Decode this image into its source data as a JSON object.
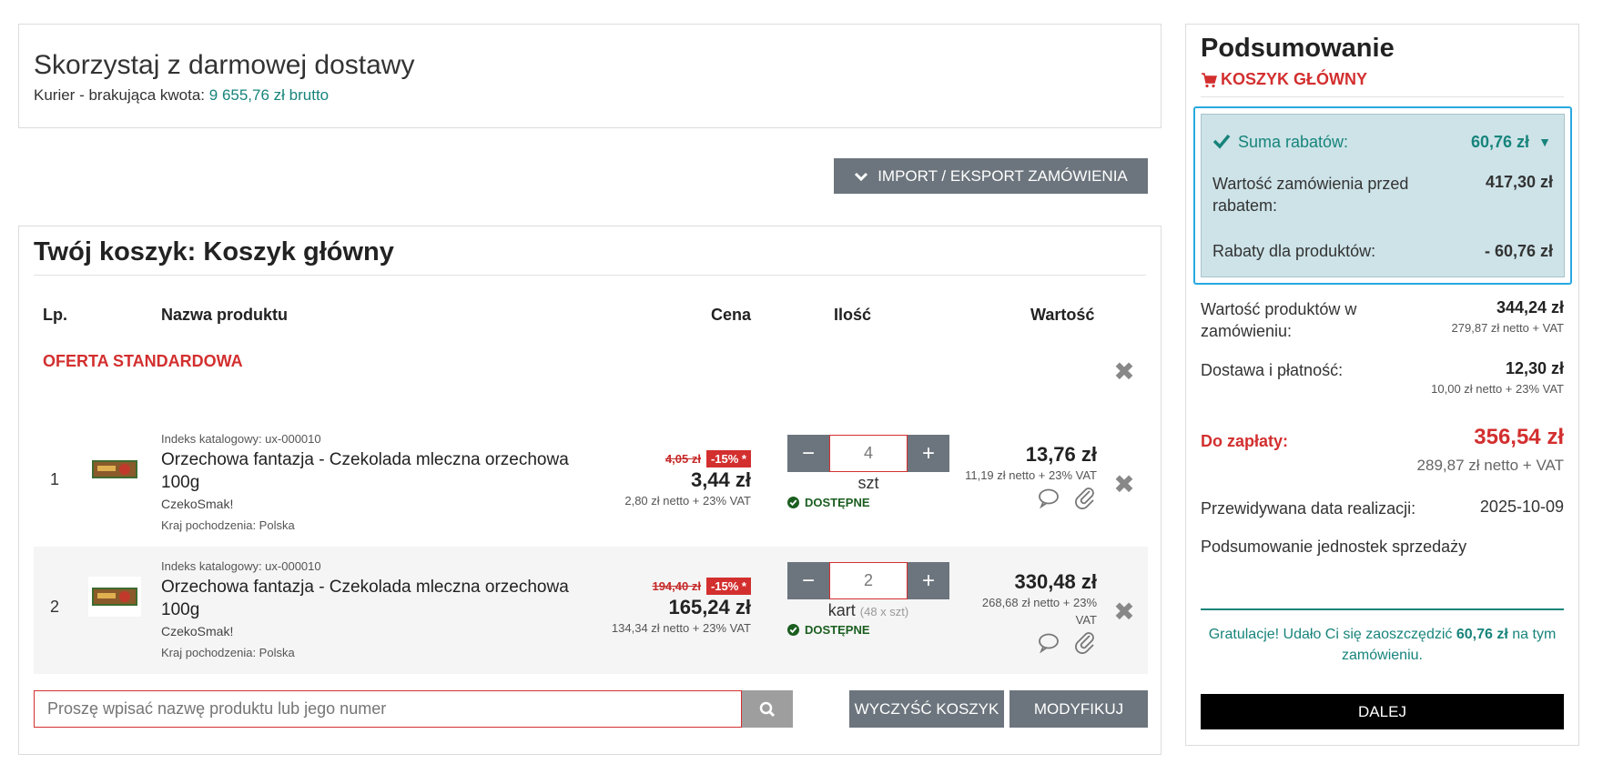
{
  "free_delivery": {
    "heading": "Skorzystaj z darmowej dostawy",
    "missing_label": "Kurier - brakująca kwota:",
    "missing_amount": "9 655,76 zł brutto"
  },
  "import_export_label": "IMPORT / EKSPORT ZAMÓWIENIA",
  "cart": {
    "title": "Twój koszyk: Koszyk główny",
    "columns": {
      "lp": "Lp.",
      "name": "Nazwa produktu",
      "price": "Cena",
      "qty": "Ilość",
      "value": "Wartość"
    },
    "offer_label": "OFERTA STANDARDOWA",
    "items": [
      {
        "lp": "1",
        "index": "Indeks katalogowy: ux-000010",
        "name": "Orzechowa fantazja - Czekolada mleczna orzechowa 100g",
        "brand": "CzekoSmak!",
        "origin": "Kraj pochodzenia: Polska",
        "old_price": "4,05 zł",
        "discount": "-15% *",
        "price": "3,44 zł",
        "price_netto": "2,80 zł netto + 23% VAT",
        "qty": "4",
        "unit": "szt",
        "pack": "",
        "availability": "DOSTĘPNE",
        "value": "13,76 zł",
        "value_netto": "11,19 zł netto + 23% VAT"
      },
      {
        "lp": "2",
        "index": "Indeks katalogowy: ux-000010",
        "name": "Orzechowa fantazja - Czekolada mleczna orzechowa 100g",
        "brand": "CzekoSmak!",
        "origin": "Kraj pochodzenia: Polska",
        "old_price": "194,40 zł",
        "discount": "-15% *",
        "price": "165,24 zł",
        "price_netto": "134,34 zł netto + 23% VAT",
        "qty": "2",
        "unit": "kart",
        "pack": "(48 x szt)",
        "availability": "DOSTĘPNE",
        "value": "330,48 zł",
        "value_netto": "268,68 zł netto + 23% VAT"
      }
    ],
    "search_placeholder": "Proszę wpisać nazwę produktu lub jego numer",
    "clear_label": "WYCZYŚĆ KOSZYK",
    "modify_label": "MODYFIKUJ"
  },
  "summary": {
    "title": "Podsumowanie",
    "cart_name": "KOSZYK GŁÓWNY",
    "discounts_label": "Suma rabatów:",
    "discounts_value": "60,76 zł",
    "before_label": "Wartość zamówienia przed rabatem:",
    "before_value": "417,30 zł",
    "product_disc_label": "Rabaty dla produktów:",
    "product_disc_value": "- 60,76 zł",
    "products_label": "Wartość produktów w zamówieniu:",
    "products_value": "344,24 zł",
    "products_netto": "279,87 zł netto + VAT",
    "delivery_label": "Dostawa i płatność:",
    "delivery_value": "12,30 zł",
    "delivery_netto": "10,00 zł netto + 23% VAT",
    "pay_label": "Do zapłaty:",
    "pay_value": "356,54 zł",
    "pay_netto": "289,87 zł netto + VAT",
    "date_label": "Przewidywana data realizacji:",
    "date_value": "2025-10-09",
    "units_label": "Podsumowanie jednostek sprzedaży",
    "grats_before": "Gratulacje! Udało Ci się zaoszczędzić",
    "grats_amount": "60,76 zł",
    "grats_after": "na tym zamówieniu.",
    "next_label": "DALEJ"
  },
  "colors": {
    "accent_red": "#d32f2f",
    "teal": "#17847b",
    "button_gray": "#6c757d",
    "highlight_blue": "#29a9e0"
  }
}
